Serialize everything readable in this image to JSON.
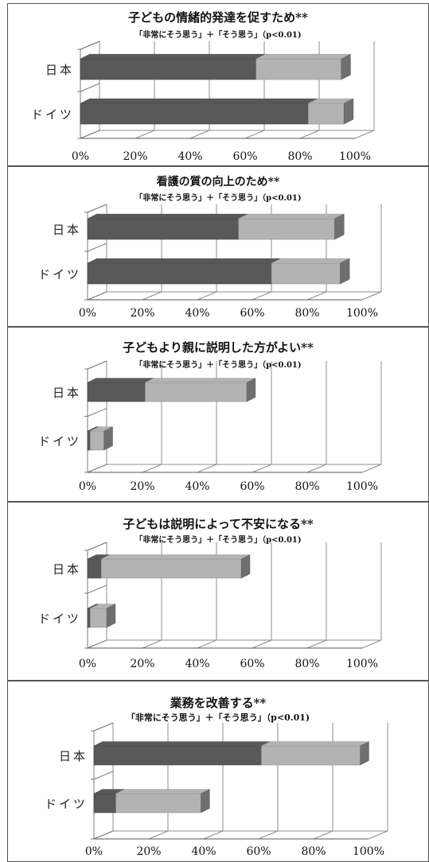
{
  "chart_data": [
    {
      "type": "bar",
      "stacked": true,
      "orientation": "horizontal",
      "title": "子どもの情緒的発達を促すため**",
      "subtitle": "「非常にそう思う」＋「そう思う」（p<0.01)",
      "categories": [
        "日本",
        "ドイツ"
      ],
      "series": [
        {
          "values": [
            64,
            83
          ],
          "color": "#595959"
        },
        {
          "values": [
            31,
            13
          ],
          "color": "#b3b3b3"
        }
      ],
      "xlim": [
        0,
        100
      ],
      "ticks": [
        "0%",
        "20%",
        "40%",
        "60%",
        "80%",
        "100%"
      ]
    },
    {
      "type": "bar",
      "stacked": true,
      "orientation": "horizontal",
      "title": "看護の質の向上のため**",
      "subtitle": "「非常にそう思う」＋「そう思う」（p<0.01)",
      "categories": [
        "日本",
        "ドイツ"
      ],
      "series": [
        {
          "values": [
            55,
            67
          ],
          "color": "#595959"
        },
        {
          "values": [
            35,
            25
          ],
          "color": "#b3b3b3"
        }
      ],
      "xlim": [
        0,
        100
      ],
      "ticks": [
        "0%",
        "20%",
        "40%",
        "60%",
        "80%",
        "100%"
      ]
    },
    {
      "type": "bar",
      "stacked": true,
      "orientation": "horizontal",
      "title": "子どもより親に説明した方がよい**",
      "subtitle": "「非常にそう思う」＋「そう思う」（p<0.01)",
      "categories": [
        "日本",
        "ドイツ"
      ],
      "series": [
        {
          "values": [
            21,
            1
          ],
          "color": "#595959"
        },
        {
          "values": [
            37,
            5
          ],
          "color": "#b3b3b3"
        }
      ],
      "xlim": [
        0,
        100
      ],
      "ticks": [
        "0%",
        "20%",
        "40%",
        "60%",
        "80%",
        "100%"
      ]
    },
    {
      "type": "bar",
      "stacked": true,
      "orientation": "horizontal",
      "title": "子どもは説明によって不安になる**",
      "subtitle": "「非常にそう思う」＋「そう思う」（p<0.01)",
      "categories": [
        "日本",
        "ドイツ"
      ],
      "series": [
        {
          "values": [
            5,
            1
          ],
          "color": "#595959"
        },
        {
          "values": [
            51,
            6
          ],
          "color": "#b3b3b3"
        }
      ],
      "xlim": [
        0,
        100
      ],
      "ticks": [
        "0%",
        "20%",
        "40%",
        "60%",
        "80%",
        "100%"
      ]
    },
    {
      "type": "bar",
      "stacked": true,
      "orientation": "horizontal",
      "title": "業務を改善する**",
      "subtitle": "「非常にそう思う」＋「そう思う」（p<0.01)",
      "categories": [
        "日本",
        "ドイツ"
      ],
      "series": [
        {
          "values": [
            61,
            8
          ],
          "color": "#595959"
        },
        {
          "values": [
            36,
            31
          ],
          "color": "#b3b3b3"
        }
      ],
      "xlim": [
        0,
        100
      ],
      "ticks": [
        "0%",
        "20%",
        "40%",
        "60%",
        "80%",
        "100%"
      ]
    }
  ]
}
